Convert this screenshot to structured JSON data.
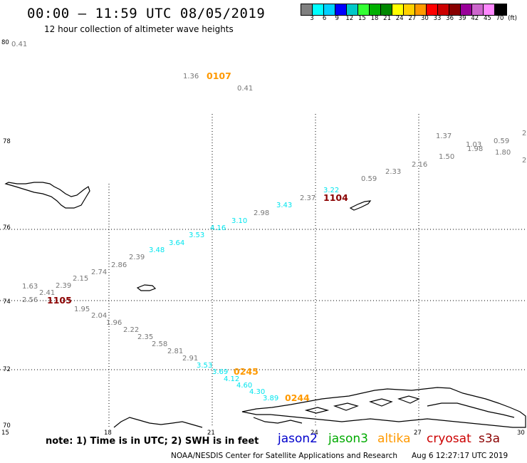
{
  "header": {
    "title": "00:00 – 11:59 UTC 08/05/2019",
    "subtitle": "12 hour collection of altimeter wave heights"
  },
  "colorbar": {
    "colors": [
      "#808080",
      "#00ffff",
      "#00d0ff",
      "#0000ff",
      "#00c8c8",
      "#33ff33",
      "#00b000",
      "#008800",
      "#ffff00",
      "#ffd000",
      "#ff9900",
      "#ff0000",
      "#cc0000",
      "#880000",
      "#990099",
      "#cc66cc",
      "#ff88ff",
      "#000000"
    ],
    "labels": [
      "3",
      "6",
      "9",
      "12",
      "15",
      "18",
      "21",
      "24",
      "27",
      "30",
      "33",
      "36",
      "39",
      "42",
      "45",
      "70",
      "(ft)"
    ]
  },
  "axes": {
    "lat_labels": [
      "80",
      "78",
      "76",
      "74",
      "72",
      "70"
    ],
    "lon_labels": [
      "15",
      "18",
      "21",
      "24",
      "27",
      "30"
    ]
  },
  "points": [
    {
      "text": "0.41",
      "color": "#777777"
    },
    {
      "text": "1.36",
      "color": "#777777"
    },
    {
      "text": "0.41",
      "color": "#777777"
    },
    {
      "text": "1.37",
      "color": "#777777"
    },
    {
      "text": "1.03",
      "color": "#777777"
    },
    {
      "text": "1.98",
      "color": "#777777"
    },
    {
      "text": "0.59",
      "color": "#777777"
    },
    {
      "text": "1.50",
      "color": "#777777"
    },
    {
      "text": "1.80",
      "color": "#777777"
    },
    {
      "text": "2.16",
      "color": "#777777"
    },
    {
      "text": "2.33",
      "color": "#777777"
    },
    {
      "text": "0.59",
      "color": "#777777"
    },
    {
      "text": "3.22",
      "color": "#00e5ee"
    },
    {
      "text": "2.37",
      "color": "#777777"
    },
    {
      "text": "3.43",
      "color": "#00e5ee"
    },
    {
      "text": "2.98",
      "color": "#777777"
    },
    {
      "text": "3.10",
      "color": "#00e5ee"
    },
    {
      "text": "4.16",
      "color": "#00e5ee"
    },
    {
      "text": "3.53",
      "color": "#00e5ee"
    },
    {
      "text": "3.64",
      "color": "#00e5ee"
    },
    {
      "text": "3.48",
      "color": "#00e5ee"
    },
    {
      "text": "2.39",
      "color": "#777777"
    },
    {
      "text": "2.86",
      "color": "#777777"
    },
    {
      "text": "2.74",
      "color": "#777777"
    },
    {
      "text": "2.15",
      "color": "#777777"
    },
    {
      "text": "2.39",
      "color": "#777777"
    },
    {
      "text": "1.63",
      "color": "#777777"
    },
    {
      "text": "2.41",
      "color": "#777777"
    },
    {
      "text": "2.56",
      "color": "#777777"
    },
    {
      "text": "1.95",
      "color": "#777777"
    },
    {
      "text": "2.04",
      "color": "#777777"
    },
    {
      "text": "1.96",
      "color": "#777777"
    },
    {
      "text": "2.22",
      "color": "#777777"
    },
    {
      "text": "2.35",
      "color": "#777777"
    },
    {
      "text": "2.58",
      "color": "#777777"
    },
    {
      "text": "2.81",
      "color": "#777777"
    },
    {
      "text": "2.91",
      "color": "#777777"
    },
    {
      "text": "3.53",
      "color": "#00e5ee"
    },
    {
      "text": "3.69",
      "color": "#00e5ee"
    },
    {
      "text": "4.12",
      "color": "#00e5ee"
    },
    {
      "text": "4.60",
      "color": "#00e5ee"
    },
    {
      "text": "4.30",
      "color": "#00e5ee"
    },
    {
      "text": "3.89",
      "color": "#00e5ee"
    },
    {
      "text": "2",
      "color": "#777777"
    },
    {
      "text": "2",
      "color": "#777777"
    }
  ],
  "passes": [
    {
      "text": "0107",
      "color": "#ff9900"
    },
    {
      "text": "1104",
      "color": "#8b0000"
    },
    {
      "text": "1105",
      "color": "#8b0000"
    },
    {
      "text": "0245",
      "color": "#ff9900"
    },
    {
      "text": "0244",
      "color": "#ff9900"
    }
  ],
  "note": "note: 1) Time is in UTC; 2) SWH is in feet",
  "satellites": [
    {
      "name": "jason2",
      "color": "#0000cc"
    },
    {
      "name": "jason3",
      "color": "#00aa00"
    },
    {
      "name": "altika",
      "color": "#ff9900"
    },
    {
      "name": "cryosat",
      "color": "#cc0000"
    },
    {
      "name": "s3a",
      "color": "#8b0000"
    }
  ],
  "footer": {
    "credit": "NOAA/NESDIS Center for Satellite Applications and Research",
    "timestamp": "Aug  6 12:27:17 UTC 2019"
  }
}
